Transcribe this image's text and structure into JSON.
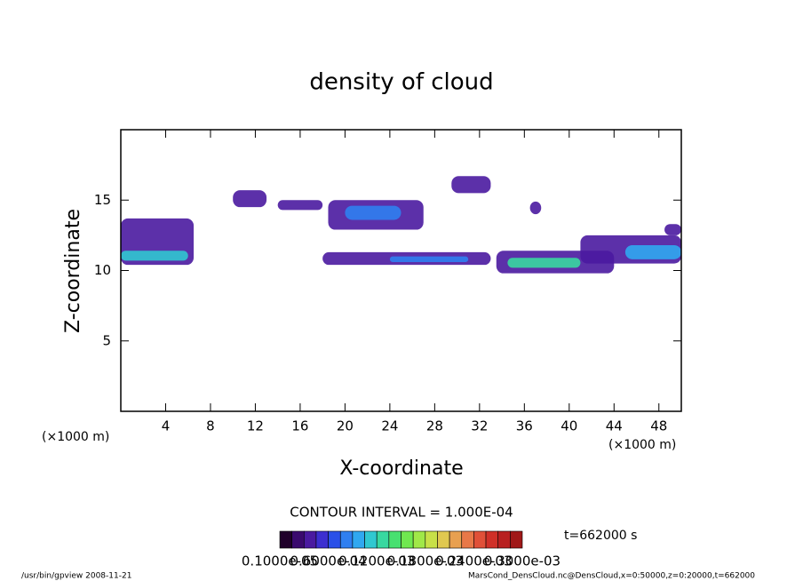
{
  "chart_data": {
    "type": "contour",
    "title": "density of cloud",
    "x_label": "X-coordinate",
    "y_label": "Z-coordinate",
    "x_unit": "(×1000 m)",
    "y_unit": "(×1000 m)",
    "xlim": [
      0,
      50
    ],
    "ylim": [
      0,
      20
    ],
    "xticks": [
      4,
      8,
      12,
      16,
      20,
      24,
      28,
      32,
      36,
      40,
      44,
      48
    ],
    "yticks": [
      5,
      10,
      15
    ],
    "contour_interval": "CONTOUR INTERVAL = 1.000E-04",
    "time": "t=662000 s",
    "clim": [
      1e-06,
      0.0003
    ],
    "colormap": [
      "#20002a",
      "#3a0a6e",
      "#4a1aa0",
      "#3c2fd0",
      "#2a50e8",
      "#2f7ff0",
      "#30a8f0",
      "#30c8d0",
      "#38d8a0",
      "#48e070",
      "#70e850",
      "#a0e848",
      "#c8e048",
      "#e0c850",
      "#e8a050",
      "#e87848",
      "#e05038",
      "#d03028",
      "#b82020",
      "#a01818"
    ],
    "colorbar_labels": [
      "0.1000e-05",
      "0.6000e-04",
      "0.1200e-03",
      "0.1800e-03",
      "0.2400e-03",
      "0.3000e-03"
    ],
    "regions": [
      {
        "x": [
          0,
          6.5
        ],
        "z": [
          10.4,
          13.7
        ],
        "value": 4e-05
      },
      {
        "x": [
          0,
          6
        ],
        "z": [
          10.7,
          11.4
        ],
        "value": 0.00012
      },
      {
        "x": [
          10,
          13
        ],
        "z": [
          14.5,
          15.7
        ],
        "value": 4e-05
      },
      {
        "x": [
          14,
          18
        ],
        "z": [
          14.3,
          15
        ],
        "value": 4e-05
      },
      {
        "x": [
          18.5,
          27
        ],
        "z": [
          12.9,
          15
        ],
        "value": 4e-05
      },
      {
        "x": [
          20,
          25
        ],
        "z": [
          13.6,
          14.6
        ],
        "value": 9e-05
      },
      {
        "x": [
          29.5,
          33
        ],
        "z": [
          15.5,
          16.7
        ],
        "value": 4e-05
      },
      {
        "x": [
          18,
          33
        ],
        "z": [
          10.4,
          11.3
        ],
        "value": 4e-05
      },
      {
        "x": [
          24,
          31
        ],
        "z": [
          10.6,
          11
        ],
        "value": 9e-05
      },
      {
        "x": [
          33.5,
          44
        ],
        "z": [
          9.8,
          11.4
        ],
        "value": 4e-05
      },
      {
        "x": [
          34.5,
          41
        ],
        "z": [
          10.2,
          10.9
        ],
        "value": 0.00013
      },
      {
        "x": [
          41,
          50
        ],
        "z": [
          10.5,
          12.5
        ],
        "value": 4e-05
      },
      {
        "x": [
          45,
          50
        ],
        "z": [
          10.8,
          11.8
        ],
        "value": 0.0001
      },
      {
        "x": [
          48.5,
          50
        ],
        "z": [
          12.5,
          13.3
        ],
        "value": 4e-05
      },
      {
        "x": [
          36.5,
          37.5
        ],
        "z": [
          14,
          14.9
        ],
        "value": 4e-05
      }
    ],
    "footer_left": "/usr/bin/gpview   2008-11-21",
    "footer_right": "MarsCond_DensCloud.nc@DensCloud,x=0:50000,z=0:20000,t=662000"
  }
}
